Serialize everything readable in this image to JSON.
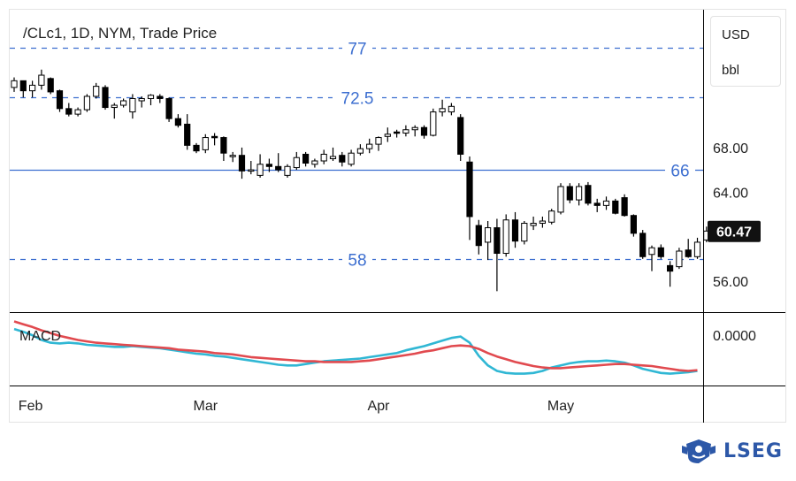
{
  "chart_data": [
    {
      "type": "candlestick",
      "title": "/CLc1, 1D, NYM, Trade Price",
      "currency": "USD",
      "unit": "bbl",
      "ylim": [
        53.3,
        80.3
      ],
      "y_ticks": [
        {
          "value": 68,
          "label": "68.00"
        },
        {
          "value": 64,
          "label": "64.00"
        },
        {
          "value": 56,
          "label": "56.00"
        }
      ],
      "last_price": {
        "value": 60.47,
        "label": "60.47"
      },
      "x_ticks": [
        {
          "index": 2,
          "label": "Feb"
        },
        {
          "index": 21,
          "label": "Mar"
        },
        {
          "index": 40,
          "label": "Apr"
        },
        {
          "index": 60,
          "label": "May"
        }
      ],
      "levels": [
        {
          "value": 77,
          "label": "77",
          "style": "dashed",
          "label_pos": "center"
        },
        {
          "value": 72.5,
          "label": "72.5",
          "style": "dashed",
          "label_pos": "center"
        },
        {
          "value": 66,
          "label": "66",
          "style": "solid",
          "label_pos": "right"
        },
        {
          "value": 58,
          "label": "58",
          "style": "dashed",
          "label_pos": "center"
        }
      ],
      "colors": {
        "up": "#ffffff",
        "down": "#000000",
        "wick": "#000000",
        "level": "#3d6fd0"
      },
      "ohlc": [
        [
          73.4,
          74.3,
          73.0,
          74.0
        ],
        [
          74.0,
          74.0,
          72.5,
          73.1
        ],
        [
          73.1,
          74.0,
          72.5,
          73.6
        ],
        [
          73.6,
          75.0,
          73.2,
          74.5
        ],
        [
          74.2,
          74.3,
          72.8,
          73.0
        ],
        [
          73.1,
          73.2,
          71.2,
          71.5
        ],
        [
          71.5,
          72.0,
          70.8,
          71.0
        ],
        [
          71.0,
          71.6,
          70.8,
          71.4
        ],
        [
          71.4,
          72.8,
          71.2,
          72.6
        ],
        [
          72.6,
          73.8,
          72.4,
          73.5
        ],
        [
          73.4,
          73.6,
          71.4,
          71.6
        ],
        [
          71.6,
          72.0,
          70.6,
          71.8
        ],
        [
          71.8,
          72.4,
          71.6,
          72.2
        ],
        [
          71.2,
          72.8,
          70.6,
          72.4
        ],
        [
          72.2,
          72.6,
          71.6,
          72.4
        ],
        [
          72.4,
          72.8,
          71.8,
          72.7
        ],
        [
          72.6,
          72.8,
          72.0,
          72.4
        ],
        [
          72.4,
          72.5,
          70.3,
          70.6
        ],
        [
          70.6,
          71.0,
          69.8,
          70.0
        ],
        [
          70.1,
          71.0,
          67.8,
          68.2
        ],
        [
          68.2,
          68.4,
          67.5,
          67.7
        ],
        [
          67.8,
          69.2,
          67.5,
          68.9
        ],
        [
          69.0,
          69.3,
          68.2,
          68.9
        ],
        [
          68.9,
          69.0,
          66.8,
          67.5
        ],
        [
          67.3,
          67.6,
          66.7,
          67.3
        ],
        [
          67.3,
          68.0,
          65.2,
          65.9
        ],
        [
          65.9,
          66.8,
          65.6,
          66.0
        ],
        [
          65.5,
          67.4,
          65.3,
          66.5
        ],
        [
          66.5,
          67.0,
          65.8,
          66.3
        ],
        [
          66.3,
          67.5,
          65.8,
          66.0
        ],
        [
          65.5,
          66.5,
          65.3,
          66.3
        ],
        [
          66.2,
          67.6,
          66.0,
          67.1
        ],
        [
          67.4,
          67.6,
          66.3,
          66.6
        ],
        [
          66.5,
          67.0,
          66.2,
          66.8
        ],
        [
          66.8,
          67.8,
          66.5,
          67.4
        ],
        [
          67.0,
          68.0,
          66.8,
          67.2
        ],
        [
          67.3,
          67.6,
          66.3,
          66.7
        ],
        [
          66.5,
          67.8,
          66.3,
          67.5
        ],
        [
          67.5,
          68.3,
          67.3,
          67.9
        ],
        [
          67.9,
          68.8,
          67.5,
          68.3
        ],
        [
          68.3,
          69.0,
          67.7,
          68.9
        ],
        [
          69.0,
          69.8,
          68.5,
          69.2
        ],
        [
          69.4,
          69.6,
          68.9,
          69.3
        ],
        [
          69.3,
          70.0,
          69.0,
          69.6
        ],
        [
          69.6,
          70.0,
          69.0,
          69.8
        ],
        [
          69.8,
          70.0,
          68.8,
          69.1
        ],
        [
          69.1,
          71.5,
          69.0,
          71.2
        ],
        [
          71.2,
          72.3,
          70.8,
          71.5
        ],
        [
          71.2,
          72.0,
          70.9,
          71.7
        ],
        [
          70.7,
          71.0,
          66.8,
          67.4
        ],
        [
          66.7,
          67.2,
          59.7,
          61.8
        ],
        [
          61.0,
          61.5,
          58.4,
          59.2
        ],
        [
          59.5,
          61.4,
          57.9,
          60.8
        ],
        [
          60.8,
          61.6,
          55.1,
          58.5
        ],
        [
          58.5,
          62.0,
          58.2,
          61.5
        ],
        [
          61.5,
          62.2,
          59.0,
          59.6
        ],
        [
          59.6,
          61.4,
          59.3,
          61.2
        ],
        [
          61.0,
          61.8,
          60.6,
          61.2
        ],
        [
          61.2,
          61.8,
          60.8,
          61.4
        ],
        [
          61.3,
          62.5,
          61.1,
          62.3
        ],
        [
          62.2,
          64.8,
          62.0,
          64.5
        ],
        [
          64.5,
          64.8,
          63.0,
          63.3
        ],
        [
          63.3,
          64.8,
          62.8,
          64.5
        ],
        [
          64.6,
          64.9,
          62.8,
          63.0
        ],
        [
          63.0,
          63.4,
          62.2,
          62.8
        ],
        [
          62.8,
          63.6,
          62.4,
          63.2
        ],
        [
          63.2,
          63.4,
          62.0,
          62.1
        ],
        [
          63.5,
          63.8,
          61.8,
          61.9
        ],
        [
          61.9,
          62.0,
          60.0,
          60.3
        ],
        [
          60.3,
          60.6,
          58.0,
          58.2
        ],
        [
          58.4,
          59.2,
          56.9,
          59.0
        ],
        [
          59.0,
          59.3,
          58.0,
          58.2
        ],
        [
          57.4,
          57.8,
          55.5,
          56.9
        ],
        [
          57.3,
          59.0,
          57.1,
          58.7
        ],
        [
          58.8,
          59.8,
          58.1,
          58.2
        ],
        [
          58.2,
          59.9,
          58.0,
          59.5
        ],
        [
          59.7,
          60.9,
          59.5,
          60.5
        ]
      ]
    },
    {
      "type": "line",
      "title": "MACD",
      "y_ticks": [
        {
          "value": 0,
          "label": "0.0000"
        }
      ],
      "ylim": [
        -3.6,
        1.55
      ],
      "series": [
        {
          "color": "#30b7d4",
          "values": [
            0.45,
            0.25,
            0.0,
            -0.35,
            -0.55,
            -0.6,
            -0.55,
            -0.6,
            -0.7,
            -0.75,
            -0.8,
            -0.85,
            -0.85,
            -0.8,
            -0.85,
            -0.9,
            -0.95,
            -1.05,
            -1.15,
            -1.25,
            -1.35,
            -1.4,
            -1.5,
            -1.55,
            -1.65,
            -1.75,
            -1.85,
            -1.95,
            -2.05,
            -2.15,
            -2.2,
            -2.2,
            -2.1,
            -2.0,
            -1.9,
            -1.85,
            -1.8,
            -1.75,
            -1.7,
            -1.6,
            -1.5,
            -1.4,
            -1.3,
            -1.1,
            -0.95,
            -0.8,
            -0.6,
            -0.4,
            -0.2,
            -0.1,
            -0.55,
            -1.5,
            -2.2,
            -2.6,
            -2.75,
            -2.8,
            -2.8,
            -2.75,
            -2.6,
            -2.35,
            -2.2,
            -2.05,
            -1.95,
            -1.9,
            -1.9,
            -1.85,
            -1.9,
            -2.0,
            -2.2,
            -2.45,
            -2.6,
            -2.75,
            -2.8,
            -2.75,
            -2.7,
            -2.6
          ]
        },
        {
          "color": "#e14a4f",
          "values": [
            1.0,
            0.8,
            0.6,
            0.35,
            0.15,
            -0.05,
            -0.2,
            -0.35,
            -0.45,
            -0.55,
            -0.6,
            -0.65,
            -0.7,
            -0.75,
            -0.8,
            -0.85,
            -0.9,
            -0.95,
            -1.05,
            -1.1,
            -1.15,
            -1.2,
            -1.3,
            -1.35,
            -1.4,
            -1.5,
            -1.6,
            -1.65,
            -1.7,
            -1.75,
            -1.8,
            -1.85,
            -1.9,
            -1.9,
            -1.95,
            -1.95,
            -1.95,
            -1.95,
            -1.9,
            -1.85,
            -1.75,
            -1.65,
            -1.55,
            -1.45,
            -1.35,
            -1.2,
            -1.1,
            -0.95,
            -0.8,
            -0.75,
            -0.8,
            -1.0,
            -1.3,
            -1.55,
            -1.75,
            -1.95,
            -2.1,
            -2.25,
            -2.35,
            -2.4,
            -2.4,
            -2.35,
            -2.3,
            -2.25,
            -2.2,
            -2.15,
            -2.1,
            -2.1,
            -2.15,
            -2.2,
            -2.25,
            -2.35,
            -2.45,
            -2.55,
            -2.6,
            -2.55
          ]
        }
      ]
    }
  ],
  "legend": {
    "macd_label": "MACD"
  },
  "branding": {
    "logo_text": "LSEG",
    "logo_icon": "lion-shield-icon"
  }
}
